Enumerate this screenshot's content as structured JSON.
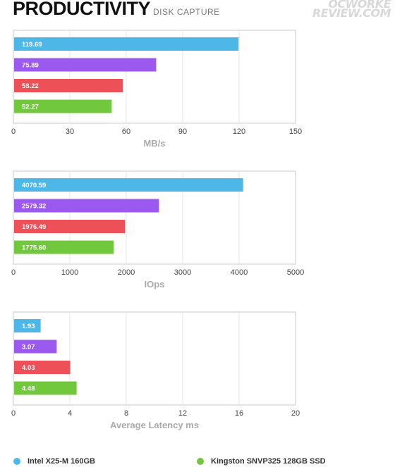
{
  "header": {
    "title": "PRODUCTIVITY",
    "subtitle": "DISK CAPTURE",
    "logo_line1": "OCWORKE",
    "logo_line2": "REVIEW.COM"
  },
  "colors": {
    "blue": "#4db8e8",
    "purple": "#9b59f0",
    "red": "#ee5057",
    "green": "#72c83c"
  },
  "legend": [
    {
      "label": "Intel X25-M 160GB",
      "color": "#4db8e8"
    },
    {
      "label": "Kingston SNVP325 128GB SSD",
      "color": "#72c83c"
    }
  ],
  "chart_data": [
    {
      "type": "bar",
      "orientation": "horizontal",
      "xlabel": "MB/s",
      "xlim": [
        0,
        150
      ],
      "ticks": [
        0,
        30,
        60,
        90,
        120,
        150
      ],
      "grid": true,
      "values": [
        119.69,
        75.89,
        58.22,
        52.27
      ],
      "labels": [
        "119.69",
        "75.89",
        "58.22",
        "52.27"
      ],
      "colors": [
        "#4db8e8",
        "#9b59f0",
        "#ee5057",
        "#72c83c"
      ]
    },
    {
      "type": "bar",
      "orientation": "horizontal",
      "xlabel": "IOps",
      "xlim": [
        0,
        5000
      ],
      "ticks": [
        0,
        1000,
        2000,
        3000,
        4000,
        5000
      ],
      "grid": true,
      "values": [
        4070.59,
        2579.32,
        1976.49,
        1775.6
      ],
      "labels": [
        "4070.59",
        "2579.32",
        "1976.49",
        "1775.60"
      ],
      "colors": [
        "#4db8e8",
        "#9b59f0",
        "#ee5057",
        "#72c83c"
      ]
    },
    {
      "type": "bar",
      "orientation": "horizontal",
      "xlabel": "Average Latency ms",
      "xlim": [
        0,
        20
      ],
      "ticks": [
        0,
        4,
        8,
        12,
        16,
        20
      ],
      "grid": true,
      "values": [
        1.93,
        3.07,
        4.03,
        4.48
      ],
      "labels": [
        "1.93",
        "3.07",
        "4.03",
        "4.48"
      ],
      "colors": [
        "#4db8e8",
        "#9b59f0",
        "#ee5057",
        "#72c83c"
      ]
    }
  ]
}
